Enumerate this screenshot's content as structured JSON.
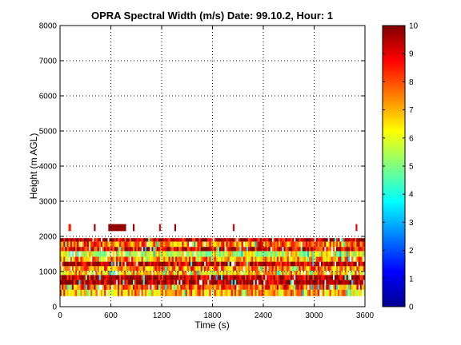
{
  "chart_data": {
    "type": "heatmap",
    "title": "OPRA Spectral Width (m/s)  Date: 99.10.2, Hour: 1",
    "xlabel": "Time (s)",
    "ylabel": "Height (m AGL)",
    "xlim": [
      0,
      3600
    ],
    "ylim": [
      0,
      8000
    ],
    "x_ticks": [
      "0",
      "600",
      "1200",
      "1800",
      "2400",
      "3000",
      "3600"
    ],
    "y_ticks": [
      "0",
      "1000",
      "2000",
      "3000",
      "4000",
      "5000",
      "6000",
      "7000",
      "8000"
    ],
    "grid": true,
    "colorbar": {
      "colormap": "jet",
      "range": [
        0,
        10
      ],
      "ticks": [
        "0",
        "1",
        "2",
        "3",
        "4",
        "5",
        "6",
        "7",
        "8",
        "9",
        "10"
      ]
    },
    "bands": [
      {
        "h_bottom": 1850,
        "h_top": 1950,
        "value": 9.5
      },
      {
        "h_bottom": 1700,
        "h_top": 1850,
        "value": 7.8
      },
      {
        "h_bottom": 1580,
        "h_top": 1700,
        "value": 9.0
      },
      {
        "h_bottom": 1420,
        "h_top": 1580,
        "value": 5.8
      },
      {
        "h_bottom": 1280,
        "h_top": 1420,
        "value": 7.2
      },
      {
        "h_bottom": 1150,
        "h_top": 1280,
        "value": 9.3
      },
      {
        "h_bottom": 1020,
        "h_top": 1150,
        "value": 7.5
      },
      {
        "h_bottom": 900,
        "h_top": 1020,
        "value": 6.8
      },
      {
        "h_bottom": 760,
        "h_top": 900,
        "value": 9.6
      },
      {
        "h_bottom": 620,
        "h_top": 760,
        "value": 9.8
      },
      {
        "h_bottom": 480,
        "h_top": 620,
        "value": 7.9
      },
      {
        "h_bottom": 300,
        "h_top": 480,
        "value": 7.0
      }
    ],
    "high_echoes": [
      {
        "x_start": 100,
        "x_end": 130,
        "h_bottom": 2150,
        "h_top": 2350,
        "value": 8.5
      },
      {
        "x_start": 400,
        "x_end": 420,
        "h_bottom": 2150,
        "h_top": 2350,
        "value": 9.8
      },
      {
        "x_start": 570,
        "x_end": 780,
        "h_bottom": 2150,
        "h_top": 2350,
        "value": 9.8
      },
      {
        "x_start": 860,
        "x_end": 880,
        "h_bottom": 2150,
        "h_top": 2350,
        "value": 9.8
      },
      {
        "x_start": 1170,
        "x_end": 1190,
        "h_bottom": 2150,
        "h_top": 2350,
        "value": 9.0
      },
      {
        "x_start": 1350,
        "x_end": 1370,
        "h_bottom": 2150,
        "h_top": 2350,
        "value": 9.8
      },
      {
        "x_start": 2040,
        "x_end": 2060,
        "h_bottom": 2150,
        "h_top": 2350,
        "value": 9.0
      },
      {
        "x_start": 3490,
        "x_end": 3510,
        "h_bottom": 2150,
        "h_top": 2350,
        "value": 9.0
      }
    ]
  }
}
